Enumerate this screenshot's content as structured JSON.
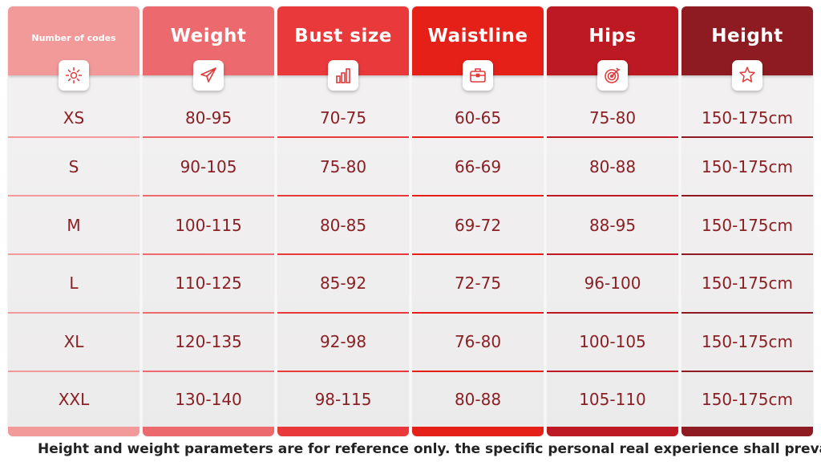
{
  "columns": [
    {
      "header": "Number of codes",
      "icon": "sun-icon",
      "color": "#f29a9a",
      "values": [
        "XS",
        "S",
        "M",
        "L",
        "XL",
        "XXL"
      ]
    },
    {
      "header": "Weight",
      "icon": "paper-plane-icon",
      "color": "#ec6a6e",
      "values": [
        "80-95",
        "90-105",
        "100-115",
        "110-125",
        "120-135",
        "130-140"
      ]
    },
    {
      "header": "Bust size",
      "icon": "bar-chart-icon",
      "color": "#e9393a",
      "values": [
        "70-75",
        "75-80",
        "80-85",
        "85-92",
        "92-98",
        "98-115"
      ]
    },
    {
      "header": "Waistline",
      "icon": "briefcase-icon",
      "color": "#e42018",
      "values": [
        "60-65",
        "66-69",
        "69-72",
        "72-75",
        "76-80",
        "80-88"
      ]
    },
    {
      "header": "Hips",
      "icon": "target-icon",
      "color": "#bd1922",
      "values": [
        "75-80",
        "80-88",
        "88-95",
        "96-100",
        "100-105",
        "105-110"
      ]
    },
    {
      "header": "Height",
      "icon": "star-icon",
      "color": "#8f1b22",
      "values": [
        "150-175cm",
        "150-175cm",
        "150-175cm",
        "150-175cm",
        "150-175cm",
        "150-175cm"
      ]
    }
  ],
  "footer_note": "Height and weight parameters are for reference only. the specific personal real experience shall prevail"
}
